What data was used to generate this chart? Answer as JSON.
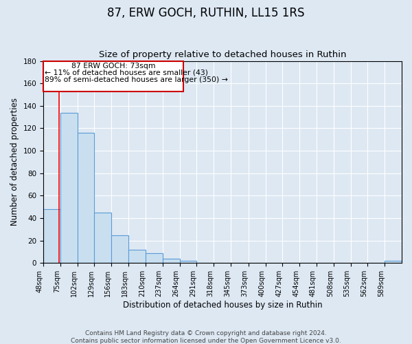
{
  "title": "87, ERW GOCH, RUTHIN, LL15 1RS",
  "subtitle": "Size of property relative to detached houses in Ruthin",
  "xlabel": "Distribution of detached houses by size in Ruthin",
  "ylabel": "Number of detached properties",
  "bin_labels": [
    "48sqm",
    "75sqm",
    "102sqm",
    "129sqm",
    "156sqm",
    "183sqm",
    "210sqm",
    "237sqm",
    "264sqm",
    "291sqm",
    "318sqm",
    "345sqm",
    "373sqm",
    "400sqm",
    "427sqm",
    "454sqm",
    "481sqm",
    "508sqm",
    "535sqm",
    "562sqm",
    "589sqm"
  ],
  "bin_edges": [
    48,
    75,
    102,
    129,
    156,
    183,
    210,
    237,
    264,
    291,
    318,
    345,
    373,
    400,
    427,
    454,
    481,
    508,
    535,
    562,
    589,
    616
  ],
  "bar_heights": [
    48,
    134,
    116,
    45,
    25,
    12,
    9,
    4,
    2,
    0,
    0,
    0,
    0,
    0,
    0,
    0,
    0,
    0,
    0,
    0,
    2
  ],
  "bar_color": "#c9dff0",
  "bar_edge_color": "#5b9bd5",
  "ylim": [
    0,
    180
  ],
  "yticks": [
    0,
    20,
    40,
    60,
    80,
    100,
    120,
    140,
    160,
    180
  ],
  "red_line_x": 73,
  "annotation_title": "87 ERW GOCH: 73sqm",
  "annotation_line1": "← 11% of detached houses are smaller (43)",
  "annotation_line2": "89% of semi-detached houses are larger (350) →",
  "annotation_box_color": "#ffffff",
  "annotation_box_edge": "#cc0000",
  "footer1": "Contains HM Land Registry data © Crown copyright and database right 2024.",
  "footer2": "Contains public sector information licensed under the Open Government Licence v3.0.",
  "bg_color": "#dde8f3",
  "grid_color": "#ffffff",
  "title_fontsize": 12,
  "subtitle_fontsize": 9.5,
  "axis_label_fontsize": 8.5,
  "tick_fontsize": 7.5,
  "footer_fontsize": 6.5
}
